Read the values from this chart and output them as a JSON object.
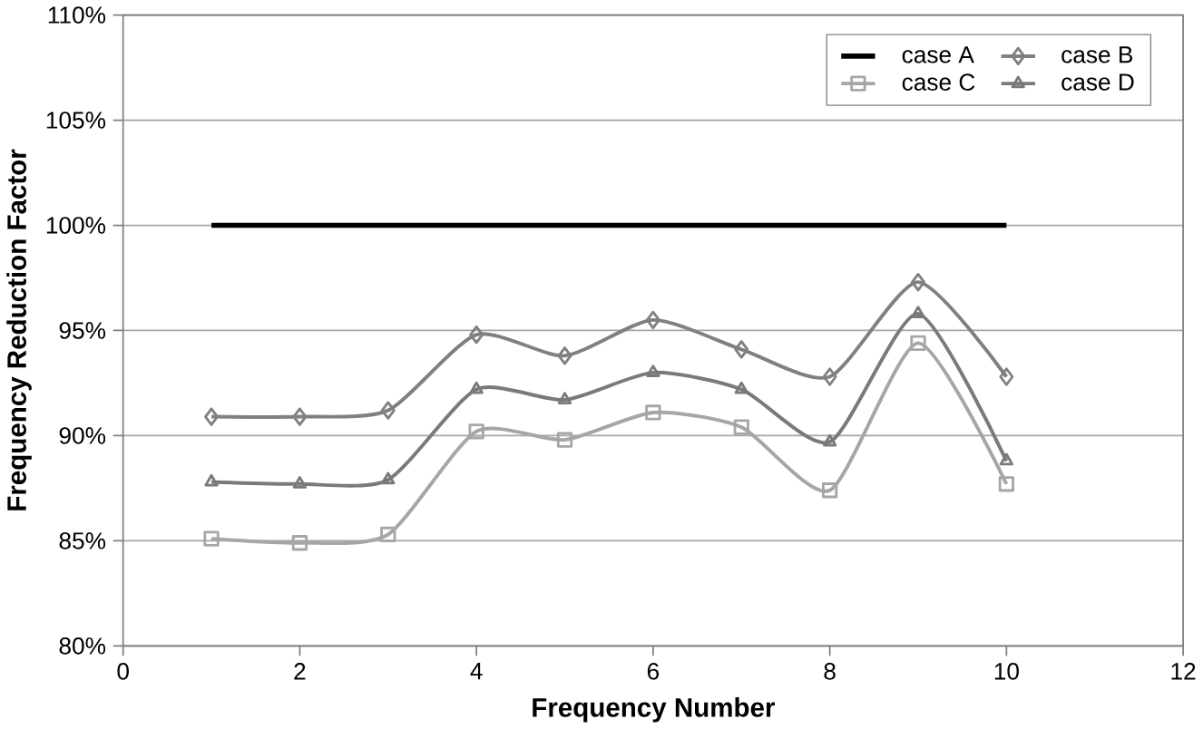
{
  "chart_data": {
    "type": "line",
    "xlabel": "Frequency Number",
    "ylabel": "Frequency Reduction Factor",
    "x": [
      1,
      2,
      3,
      4,
      5,
      6,
      7,
      8,
      9,
      10
    ],
    "series": [
      {
        "name": "case A",
        "color": "#000000",
        "marker": "none",
        "values": [
          100,
          100,
          100,
          100,
          100,
          100,
          100,
          100,
          100,
          100
        ]
      },
      {
        "name": "case B",
        "color": "#808080",
        "marker": "diamond",
        "values": [
          90.9,
          90.9,
          91.2,
          94.8,
          93.8,
          95.5,
          94.1,
          92.8,
          97.3,
          92.8
        ]
      },
      {
        "name": "case C",
        "color": "#a6a6a6",
        "marker": "square",
        "values": [
          85.1,
          84.9,
          85.3,
          90.2,
          89.8,
          91.1,
          90.4,
          87.4,
          94.4,
          87.7
        ]
      },
      {
        "name": "case D",
        "color": "#7a7a7a",
        "marker": "triangle",
        "values": [
          87.8,
          87.7,
          87.9,
          92.2,
          91.7,
          93.0,
          92.2,
          89.7,
          95.8,
          88.8
        ]
      }
    ],
    "xlim": [
      0,
      12
    ],
    "xticks": [
      0,
      2,
      4,
      6,
      8,
      10,
      12
    ],
    "ylim": [
      80,
      110
    ],
    "yticks": [
      {
        "value": 80,
        "label": "80%"
      },
      {
        "value": 85,
        "label": "85%"
      },
      {
        "value": 90,
        "label": "90%"
      },
      {
        "value": 95,
        "label": "95%"
      },
      {
        "value": 100,
        "label": "100%"
      },
      {
        "value": 105,
        "label": "105%"
      },
      {
        "value": 110,
        "label": "110%"
      }
    ],
    "grid": "y",
    "legend": "top right",
    "line_style": "solid"
  }
}
